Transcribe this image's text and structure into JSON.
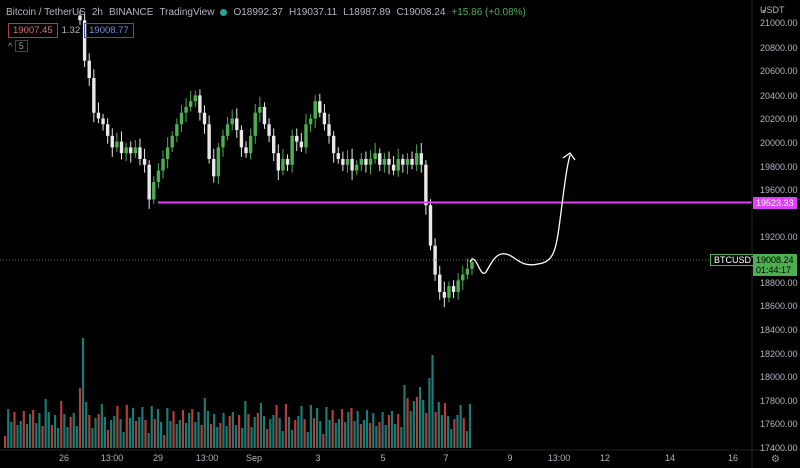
{
  "header": {
    "symbol": "Bitcoin / TetherUS",
    "interval": "2h",
    "exchange": "BINANCE",
    "platform": "TradingView",
    "open": "O18992.37",
    "high": "H19037.11",
    "low": "L18987.89",
    "close": "C19008.24",
    "change": "+15.86 (+0.08%)"
  },
  "quote": {
    "bid": "19007.45",
    "spread": "1.32",
    "ask": "19008.77"
  },
  "indicator_count": "5",
  "price_axis": {
    "currency": "USDT",
    "ticks": [
      "21000.00",
      "20800.00",
      "20600.00",
      "20400.00",
      "20200.00",
      "20000.00",
      "19800.00",
      "19600.00",
      "19200.00",
      "18800.00",
      "18600.00",
      "18400.00",
      "18200.00",
      "18000.00",
      "17800.00",
      "17600.00",
      "17400.00"
    ]
  },
  "time_axis": {
    "ticks": [
      "26",
      "13:00",
      "29",
      "13:00",
      "Sep",
      "3",
      "5",
      "7",
      "9",
      "12",
      "13:00",
      "14",
      "16"
    ]
  },
  "support_line": {
    "price": "19523.33",
    "color": "#e040fb"
  },
  "current_price": {
    "symbol": "BTCUSDT",
    "price": "19008.24",
    "countdown": "01:44:17",
    "color": "#4caf50"
  },
  "colors": {
    "up": "#4caf50",
    "down": "#e8e8e8",
    "vol_up": "#26a69a",
    "vol_down": "#ef5350",
    "support": "#e040fb"
  },
  "chart_data": {
    "type": "candlestick",
    "ylim": [
      17400,
      21050
    ],
    "support_level": 19523.33,
    "last_price": 19008.24,
    "closes": [
      21100,
      20750,
      20600,
      20300,
      20250,
      20200,
      20100,
      20000,
      20050,
      19950,
      20000,
      19950,
      20000,
      19900,
      19850,
      19550,
      19700,
      19800,
      19900,
      20000,
      20100,
      20200,
      20300,
      20350,
      20400,
      20450,
      20300,
      20200,
      19900,
      19750,
      20000,
      20100,
      20200,
      20250,
      20150,
      20000,
      19950,
      20100,
      20300,
      20350,
      20200,
      20100,
      19950,
      19800,
      19900,
      19850,
      20100,
      20050,
      20000,
      20200,
      20250,
      20400,
      20300,
      20200,
      20100,
      19950,
      19900,
      19850,
      19900,
      19800,
      19850,
      19900,
      19850,
      19900,
      19950,
      19850,
      19900,
      19850,
      19800,
      19900,
      19850,
      19900,
      19850,
      19950,
      19850,
      19500,
      19150,
      18900,
      18750,
      18700,
      18800,
      18750,
      18850,
      18900,
      18950,
      19008
    ]
  },
  "projection": {
    "color": "#ffffff"
  }
}
